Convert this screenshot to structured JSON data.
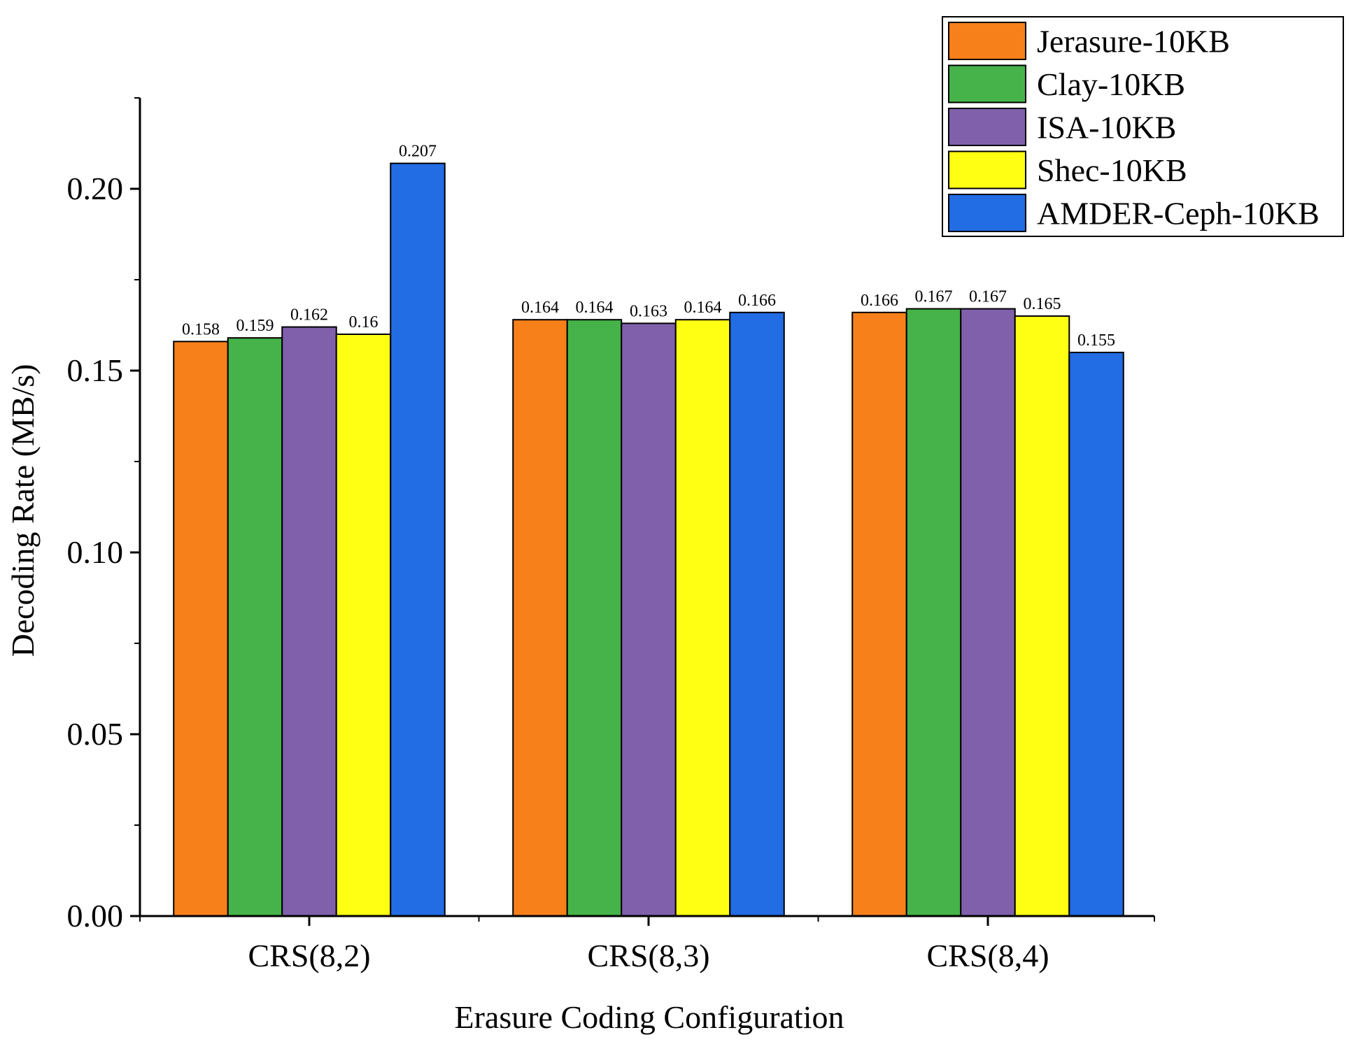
{
  "chart_data": {
    "type": "bar",
    "title": "",
    "xlabel": "Erasure Coding Configuration",
    "ylabel": "Decoding Rate (MB/s)",
    "ylim": [
      0,
      0.225
    ],
    "yticks": [
      "0.00",
      "0.05",
      "0.10",
      "0.15",
      "0.20"
    ],
    "ytick_values": [
      0,
      0.05,
      0.1,
      0.15,
      0.2
    ],
    "categories": [
      "CRS(8,2)",
      "CRS(8,3)",
      "CRS(8,4)"
    ],
    "legend_position": "top-right",
    "series": [
      {
        "name": "Jerasure-10KB",
        "color": "#F8801A",
        "values": [
          0.158,
          0.164,
          0.166
        ],
        "labels": [
          "0.158",
          "0.164",
          "0.166"
        ]
      },
      {
        "name": "Clay-10KB",
        "color": "#45B349",
        "values": [
          0.159,
          0.164,
          0.167
        ],
        "labels": [
          "0.159",
          "0.164",
          "0.167"
        ]
      },
      {
        "name": "ISA-10KB",
        "color": "#8060AB",
        "values": [
          0.162,
          0.163,
          0.167
        ],
        "labels": [
          "0.162",
          "0.163",
          "0.167"
        ]
      },
      {
        "name": "Shec-10KB",
        "color": "#FFFF13",
        "values": [
          0.16,
          0.164,
          0.165
        ],
        "labels": [
          "0.16",
          "0.164",
          "0.165"
        ]
      },
      {
        "name": "AMDER-Ceph-10KB",
        "color": "#226CE4",
        "values": [
          0.207,
          0.166,
          0.155
        ],
        "labels": [
          "0.207",
          "0.166",
          "0.155"
        ]
      }
    ]
  }
}
